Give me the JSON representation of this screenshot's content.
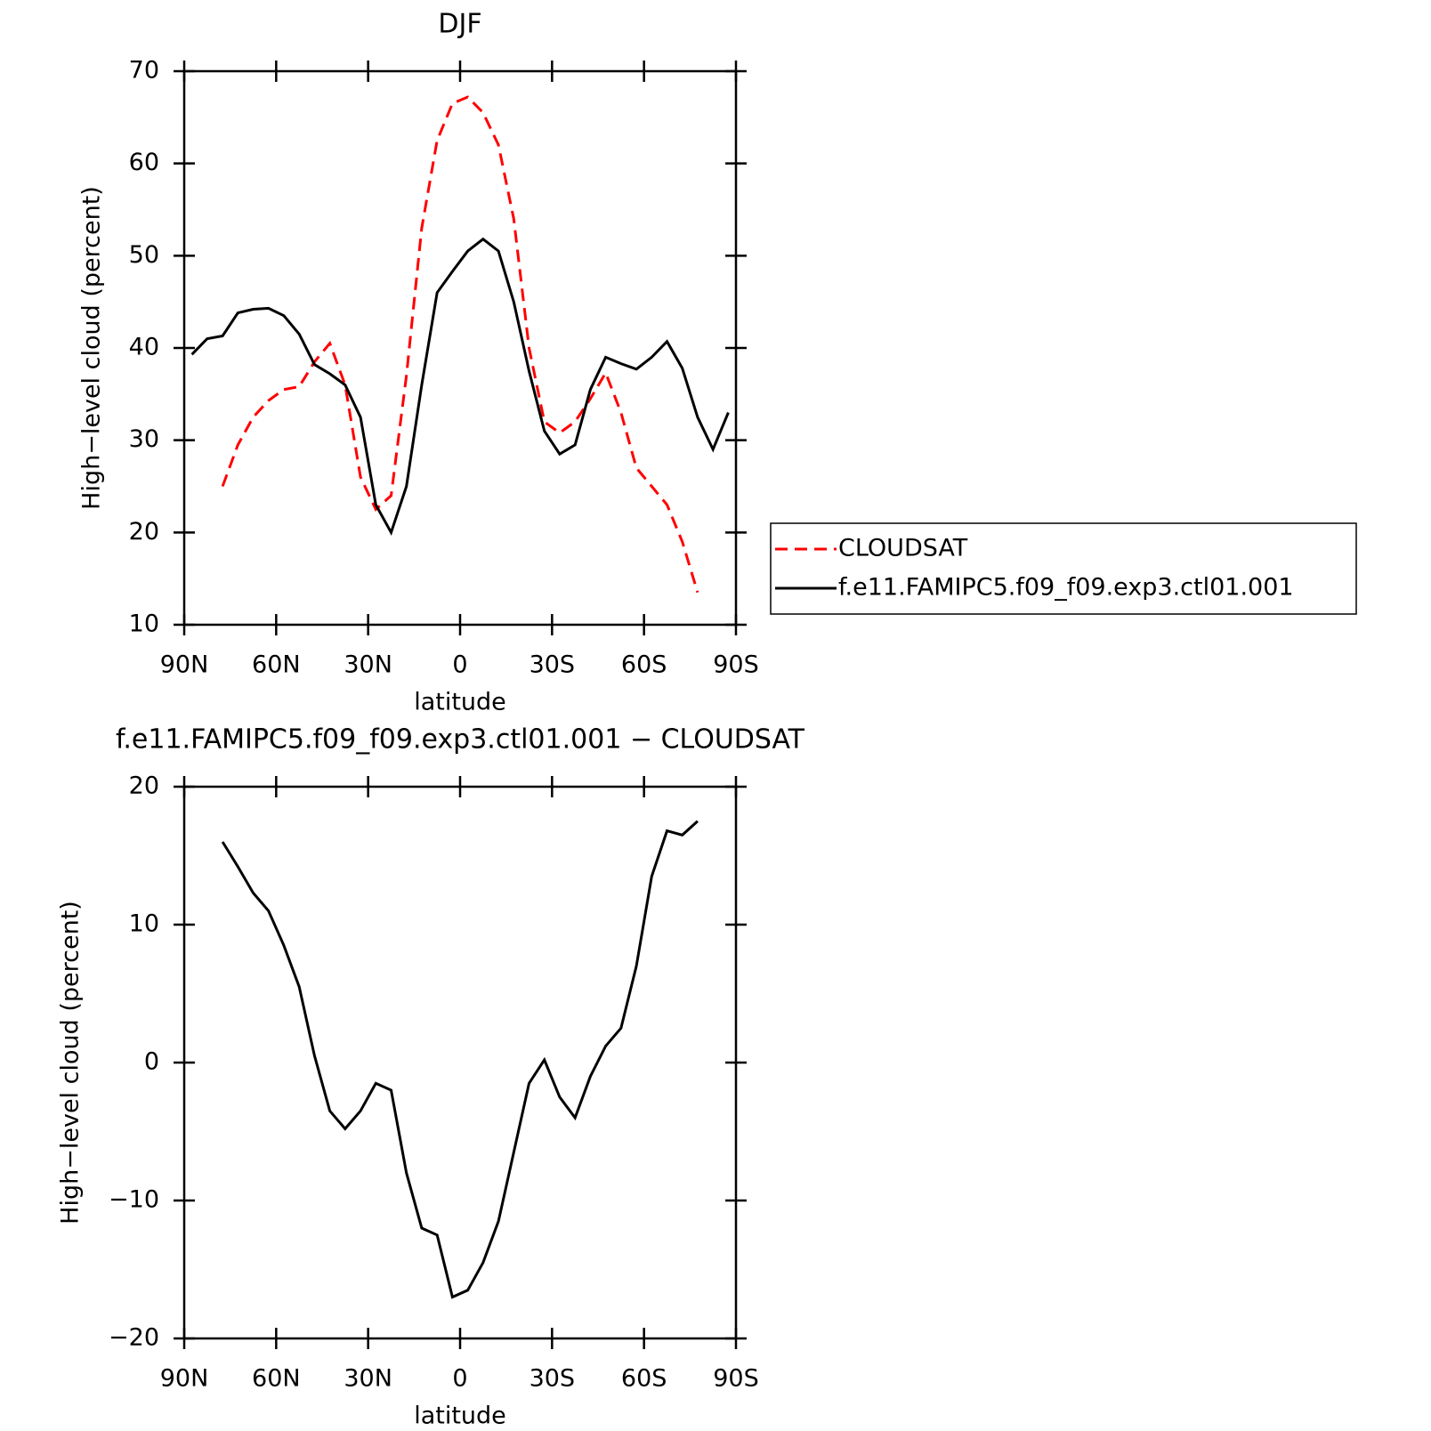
{
  "chart_data": [
    {
      "type": "line",
      "title": "DJF",
      "xlabel": "latitude",
      "ylabel": "High−level cloud (percent)",
      "x": [
        87.5,
        82.5,
        77.5,
        72.5,
        67.5,
        62.5,
        57.5,
        52.5,
        47.5,
        42.5,
        37.5,
        32.5,
        27.5,
        22.5,
        17.5,
        12.5,
        7.5,
        2.5,
        -2.5,
        -7.5,
        -12.5,
        -17.5,
        -22.5,
        -27.5,
        -32.5,
        -37.5,
        -42.5,
        -47.5,
        -52.5,
        -57.5,
        -62.5,
        -67.5,
        -72.5,
        -77.5,
        -82.5,
        -87.5
      ],
      "series": [
        {
          "name": "CLOUDSAT",
          "color": "#ff0000",
          "dash": "dashed",
          "values": [
            null,
            null,
            25,
            29.5,
            32.5,
            34.3,
            35.5,
            35.8,
            38.5,
            40.5,
            36,
            26,
            22.5,
            24,
            37,
            53,
            62.5,
            66.5,
            67.2,
            65.5,
            62,
            54,
            40,
            32,
            30.8,
            32,
            34.5,
            37.3,
            33,
            27,
            25,
            23,
            19,
            13.5,
            null,
            null
          ]
        },
        {
          "name": "f.e11.FAMIPC5.f09_f09.exp3.ctl01.001",
          "color": "#000000",
          "dash": "solid",
          "values": [
            39.3,
            41,
            41.3,
            43.8,
            44.2,
            44.3,
            43.5,
            41.5,
            38.2,
            37.2,
            36,
            32.5,
            23,
            20,
            25,
            36,
            46,
            48.3,
            50.5,
            51.8,
            50.5,
            45,
            37.5,
            31,
            28.5,
            29.5,
            35.5,
            39,
            38.3,
            37.7,
            39,
            40.7,
            37.8,
            32.5,
            29,
            33
          ]
        }
      ],
      "xlim": [
        90,
        -90
      ],
      "xticks": [
        {
          "value": 90,
          "label": "90N"
        },
        {
          "value": 60,
          "label": "60N"
        },
        {
          "value": 30,
          "label": "30N"
        },
        0,
        {
          "value": -30,
          "label": "30S"
        },
        {
          "value": -60,
          "label": "60S"
        },
        {
          "value": -90,
          "label": "90S"
        }
      ],
      "ylim": [
        10,
        70
      ],
      "yticks": [
        10,
        20,
        30,
        40,
        50,
        60,
        70
      ],
      "legend": "right"
    },
    {
      "type": "line",
      "title": "f.e11.FAMIPC5.f09_f09.exp3.ctl01.001 − CLOUDSAT",
      "xlabel": "latitude",
      "ylabel": "High−level cloud (percent)",
      "x": [
        87.5,
        82.5,
        77.5,
        72.5,
        67.5,
        62.5,
        57.5,
        52.5,
        47.5,
        42.5,
        37.5,
        32.5,
        27.5,
        22.5,
        17.5,
        12.5,
        7.5,
        2.5,
        -2.5,
        -7.5,
        -12.5,
        -17.5,
        -22.5,
        -27.5,
        -32.5,
        -37.5,
        -42.5,
        -47.5,
        -52.5,
        -57.5,
        -62.5,
        -67.5,
        -72.5,
        -77.5,
        -82.5,
        -87.5
      ],
      "series": [
        {
          "color": "#000000",
          "dash": "solid",
          "values": [
            null,
            null,
            16,
            14.2,
            12.3,
            11,
            8.5,
            5.5,
            0.5,
            -3.5,
            -4.8,
            -3.5,
            -1.5,
            -2,
            -8,
            -12,
            -12.5,
            -17,
            -16.5,
            -14.5,
            -11.5,
            -6.5,
            -1.5,
            0.2,
            -2.5,
            -4,
            -1,
            1.2,
            2.5,
            7,
            13.5,
            16.8,
            16.5,
            17.5,
            null,
            null
          ]
        }
      ],
      "xlim": [
        90,
        -90
      ],
      "xticks": [
        {
          "value": 90,
          "label": "90N"
        },
        {
          "value": 60,
          "label": "60N"
        },
        {
          "value": 30,
          "label": "30N"
        },
        0,
        {
          "value": -30,
          "label": "30S"
        },
        {
          "value": -60,
          "label": "60S"
        },
        {
          "value": -90,
          "label": "90S"
        }
      ],
      "ylim": [
        -20,
        20
      ],
      "yticks": [
        {
          "value": -20,
          "label": "−20"
        },
        {
          "value": -10,
          "label": "−10"
        },
        0,
        10,
        20
      ]
    }
  ]
}
